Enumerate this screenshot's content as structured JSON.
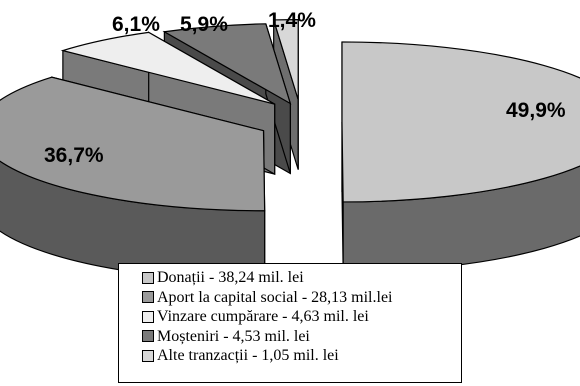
{
  "chart_data": {
    "type": "pie",
    "style": "3d-exploded",
    "title": "",
    "slices": [
      {
        "label": "Donații - 38,24 mil. lei",
        "value": 38.24,
        "percent_label": "49,9%",
        "top_color": "#c8c8c8",
        "side_color": "#6a6a6a"
      },
      {
        "label": "Aport la capital social - 28,13 mil.lei",
        "value": 28.13,
        "percent_label": "36,7%",
        "top_color": "#9a9a9a",
        "side_color": "#5a5a5a"
      },
      {
        "label": "Vinzare cumpărare  - 4,63 mil. lei",
        "value": 4.63,
        "percent_label": "6,1%",
        "top_color": "#eeeeee",
        "side_color": "#7a7a7a"
      },
      {
        "label": "Moșteniri - 4,53 mil. lei",
        "value": 4.53,
        "percent_label": "5,9%",
        "top_color": "#7a7a7a",
        "side_color": "#4a4a4a"
      },
      {
        "label": "Alte tranzacții - 1,05 mil. lei",
        "value": 1.05,
        "percent_label": "1,4%",
        "top_color": "#d8d8d8",
        "side_color": "#6e6e6e"
      }
    ],
    "legend_position": "bottom"
  }
}
